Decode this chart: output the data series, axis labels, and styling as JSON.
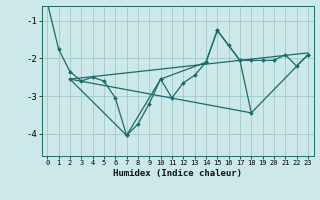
{
  "xlabel": "Humidex (Indice chaleur)",
  "ylabel": "",
  "xlim": [
    -0.5,
    23.5
  ],
  "ylim": [
    -4.6,
    -0.6
  ],
  "background_color": "#cce8e8",
  "grid_color": "#a0c8c8",
  "line_color": "#1a6b6b",
  "x_ticks": [
    0,
    1,
    2,
    3,
    4,
    5,
    6,
    7,
    8,
    9,
    10,
    11,
    12,
    13,
    14,
    15,
    16,
    17,
    18,
    19,
    20,
    21,
    22,
    23
  ],
  "y_ticks": [
    -4,
    -3,
    -2,
    -1
  ],
  "series1": [
    [
      0,
      -0.5
    ],
    [
      1,
      -1.75
    ],
    [
      2,
      -2.35
    ],
    [
      3,
      -2.6
    ],
    [
      4,
      -2.5
    ],
    [
      5,
      -2.6
    ],
    [
      6,
      -3.05
    ],
    [
      7,
      -4.05
    ],
    [
      8,
      -3.75
    ],
    [
      9,
      -3.2
    ],
    [
      10,
      -2.55
    ],
    [
      11,
      -3.05
    ],
    [
      12,
      -2.65
    ],
    [
      13,
      -2.45
    ],
    [
      14,
      -2.1
    ],
    [
      15,
      -1.25
    ],
    [
      16,
      -1.65
    ],
    [
      17,
      -2.05
    ],
    [
      18,
      -2.05
    ],
    [
      19,
      -2.05
    ],
    [
      20,
      -2.05
    ],
    [
      21,
      -1.9
    ],
    [
      22,
      -2.2
    ],
    [
      23,
      -1.9
    ]
  ],
  "series2": [
    [
      2,
      -2.55
    ],
    [
      23,
      -1.85
    ]
  ],
  "series3": [
    [
      2,
      -2.55
    ],
    [
      7,
      -4.05
    ],
    [
      10,
      -2.55
    ],
    [
      14,
      -2.1
    ],
    [
      15,
      -1.25
    ],
    [
      17,
      -2.05
    ],
    [
      18,
      -3.45
    ],
    [
      23,
      -1.9
    ]
  ],
  "series4": [
    [
      2,
      -2.55
    ],
    [
      18,
      -3.45
    ]
  ]
}
